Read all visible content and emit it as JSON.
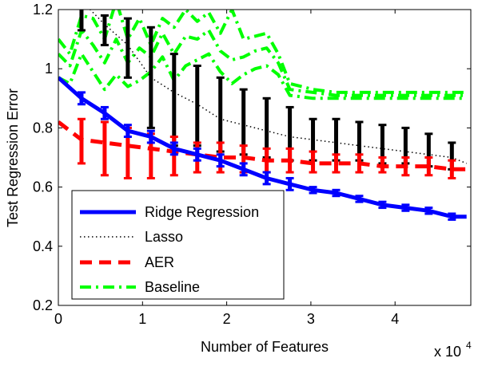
{
  "chart_data": {
    "type": "line",
    "xlabel": "Number of Features",
    "ylabel": "Test Regression Error",
    "x_multiplier": "x 10",
    "x_multiplier_exp": "4",
    "xlim": [
      0,
      49000
    ],
    "ylim": [
      0.2,
      1.2
    ],
    "x_ticks": [
      0,
      10000,
      20000,
      30000,
      40000
    ],
    "x_tick_labels": [
      "0",
      "1",
      "2",
      "3",
      "4"
    ],
    "y_ticks": [
      0.2,
      0.4,
      0.6,
      0.8,
      1.0,
      1.2
    ],
    "y_tick_labels": [
      "0.2",
      "0.4",
      "0.6",
      "0.8",
      "1",
      "1.2"
    ],
    "grid": false,
    "legend_position": "bottom-left",
    "series": [
      {
        "name": "Ridge Regression",
        "color": "#0000ff",
        "style": "solid",
        "x": [
          0,
          2750,
          5500,
          8250,
          11000,
          13750,
          16500,
          19250,
          22000,
          24750,
          27500,
          30250,
          33000,
          35750,
          38500,
          41250,
          44000,
          46750,
          48500
        ],
        "values": [
          0.97,
          0.9,
          0.85,
          0.79,
          0.77,
          0.73,
          0.71,
          0.69,
          0.66,
          0.63,
          0.61,
          0.59,
          0.58,
          0.56,
          0.54,
          0.53,
          0.52,
          0.5,
          0.5
        ],
        "error_x": [
          2750,
          5500,
          8250,
          11000,
          13750,
          16500,
          19250,
          22000,
          24750,
          27500,
          30250,
          33000,
          35750,
          38500,
          41250,
          44000,
          46750
        ],
        "error_lo": [
          0.88,
          0.83,
          0.77,
          0.75,
          0.71,
          0.69,
          0.67,
          0.64,
          0.61,
          0.59,
          0.58,
          0.57,
          0.55,
          0.53,
          0.52,
          0.51,
          0.49
        ],
        "error_hi": [
          0.92,
          0.87,
          0.81,
          0.79,
          0.75,
          0.73,
          0.71,
          0.68,
          0.65,
          0.63,
          0.6,
          0.59,
          0.57,
          0.55,
          0.54,
          0.53,
          0.51
        ]
      },
      {
        "name": "Lasso",
        "color": "#000000",
        "style": "dotted",
        "x": [
          2750,
          5500,
          8250,
          11000,
          13750,
          16500,
          19250,
          22000,
          24750,
          27500,
          30250,
          33000,
          35750,
          38500,
          41250,
          44000,
          46750,
          48500
        ],
        "values": [
          1.23,
          1.15,
          1.08,
          0.97,
          0.92,
          0.88,
          0.83,
          0.81,
          0.79,
          0.77,
          0.76,
          0.75,
          0.74,
          0.73,
          0.72,
          0.71,
          0.7,
          0.68
        ],
        "error_x": [
          2750,
          5500,
          8250,
          11000,
          13750,
          16500,
          19250,
          22000,
          24750,
          27500,
          30250,
          33000,
          35750,
          38500,
          41250,
          44000,
          46750
        ],
        "error_lo": [
          1.13,
          1.08,
          0.97,
          0.8,
          0.74,
          0.74,
          0.72,
          0.71,
          0.7,
          0.69,
          0.69,
          0.69,
          0.69,
          0.68,
          0.68,
          0.67,
          0.66
        ],
        "error_hi": [
          1.22,
          1.18,
          1.17,
          1.14,
          1.05,
          1.01,
          0.97,
          0.93,
          0.9,
          0.87,
          0.83,
          0.83,
          0.82,
          0.81,
          0.8,
          0.78,
          0.75
        ]
      },
      {
        "name": "AER",
        "color": "#ff0000",
        "style": "dashed",
        "x": [
          0,
          2750,
          5500,
          8250,
          11000,
          13750,
          16500,
          19250,
          22000,
          24750,
          27500,
          30250,
          33000,
          35750,
          38500,
          41250,
          44000,
          46750,
          48500
        ],
        "values": [
          0.82,
          0.76,
          0.75,
          0.74,
          0.73,
          0.72,
          0.71,
          0.7,
          0.7,
          0.69,
          0.69,
          0.68,
          0.68,
          0.68,
          0.67,
          0.67,
          0.67,
          0.66,
          0.66
        ],
        "error_x": [
          2750,
          5500,
          8250,
          11000,
          13750,
          16500,
          19250,
          22000,
          24750,
          27500,
          30250,
          33000,
          35750,
          38500,
          41250,
          44000,
          46750
        ],
        "error_lo": [
          0.68,
          0.64,
          0.63,
          0.63,
          0.64,
          0.65,
          0.65,
          0.65,
          0.65,
          0.65,
          0.65,
          0.65,
          0.65,
          0.65,
          0.64,
          0.64,
          0.63
        ],
        "error_hi": [
          0.83,
          0.82,
          0.8,
          0.78,
          0.77,
          0.75,
          0.75,
          0.74,
          0.73,
          0.73,
          0.72,
          0.71,
          0.71,
          0.7,
          0.7,
          0.7,
          0.69
        ]
      },
      {
        "name": "Baseline",
        "color": "#00ff00",
        "style": "dashdot",
        "x": [
          0,
          1375,
          2750,
          4125,
          5500,
          6875,
          8250,
          9625,
          11000,
          12375,
          13750,
          15125,
          16500,
          17875,
          19250,
          20625,
          22000,
          23375,
          24750,
          26125,
          27500,
          30250,
          33000,
          35750,
          38500,
          41250,
          44000,
          46750,
          48500
        ],
        "values": [
          1.05,
          1.01,
          1.13,
          1.08,
          1.02,
          1.1,
          1.02,
          1.07,
          1.04,
          1.12,
          1.05,
          1.11,
          1.1,
          1.13,
          1.06,
          1.03,
          1.04,
          1.06,
          1.07,
          1.02,
          0.93,
          0.92,
          0.91,
          0.91,
          0.91,
          0.91,
          0.91,
          0.91,
          0.91
        ],
        "upper": [
          1.1,
          1.05,
          1.18,
          1.17,
          1.1,
          1.23,
          1.1,
          1.17,
          1.08,
          1.17,
          1.14,
          1.2,
          1.16,
          1.19,
          1.12,
          1.2,
          1.1,
          1.11,
          1.12,
          1.05,
          0.95,
          0.93,
          0.92,
          0.92,
          0.92,
          0.92,
          0.92,
          0.92,
          0.92
        ],
        "lower": [
          0.97,
          0.95,
          1.05,
          0.99,
          0.93,
          0.98,
          0.94,
          0.96,
          0.99,
          1.04,
          0.96,
          1.01,
          1.03,
          1.05,
          0.99,
          0.95,
          0.98,
          1.0,
          1.01,
          0.98,
          0.91,
          0.9,
          0.9,
          0.9,
          0.9,
          0.9,
          0.9,
          0.9,
          0.9
        ]
      }
    ]
  }
}
